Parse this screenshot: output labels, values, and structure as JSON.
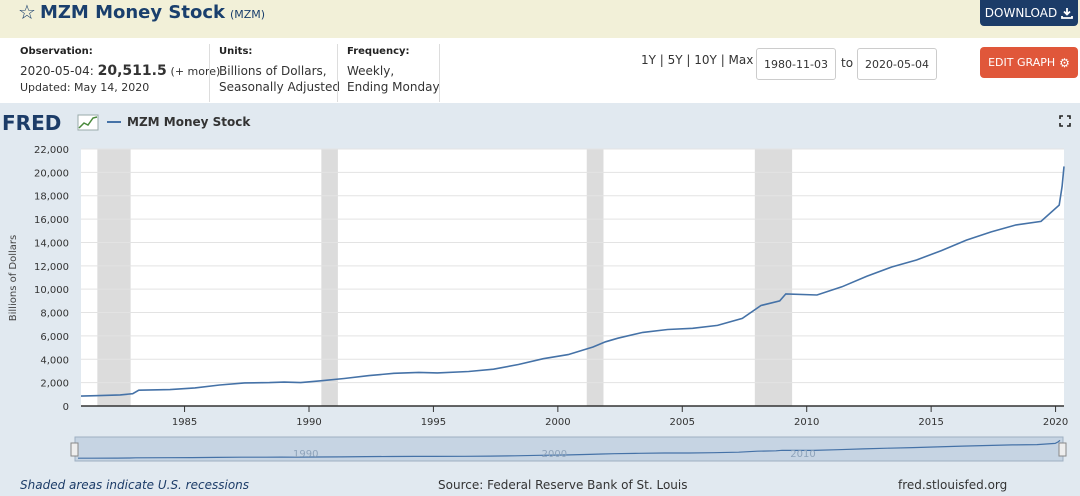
{
  "header": {
    "title": "MZM Money Stock",
    "series_code": "(MZM)",
    "download_label": "DOWNLOAD"
  },
  "observation": {
    "label": "Observation:",
    "date": "2020-05-04:",
    "value": "20,511.5",
    "more": "(+ more)",
    "updated": "Updated: May 14, 2020"
  },
  "units": {
    "label": "Units:",
    "line1": "Billions of Dollars,",
    "line2": "Seasonally Adjusted"
  },
  "frequency": {
    "label": "Frequency:",
    "line1": "Weekly,",
    "line2": "Ending Monday"
  },
  "range_buttons": "1Y | 5Y | 10Y | Max",
  "date_from": "1980-11-03",
  "date_to": "2020-05-04",
  "to_label": "to",
  "edit_label": "EDIT GRAPH",
  "colors": {
    "line": "#4572a7",
    "recession": "#dcdcdc",
    "brand": "#1c3c68",
    "edit": "#e0573a"
  },
  "chart_data": {
    "type": "line",
    "logo": "FRED",
    "legend": "MZM Money Stock",
    "ylabel": "Billions of Dollars",
    "ylim": [
      0,
      22000
    ],
    "yticks": [
      0,
      2000,
      4000,
      6000,
      8000,
      10000,
      12000,
      14000,
      16000,
      18000,
      20000,
      22000
    ],
    "ytick_labels": [
      "0",
      "2,000",
      "4,000",
      "6,000",
      "8,000",
      "10,000",
      "12,000",
      "14,000",
      "16,000",
      "18,000",
      "20,000",
      "22,000"
    ],
    "xlim": [
      "1980-11-03",
      "2020-05-04"
    ],
    "xticks": [
      1985,
      1990,
      1995,
      2000,
      2005,
      2010,
      2015,
      2020
    ],
    "recessions": [
      [
        "1981-07-01",
        "1982-11-01"
      ],
      [
        "1990-07-01",
        "1991-03-01"
      ],
      [
        "2001-03-01",
        "2001-11-01"
      ],
      [
        "2007-12-01",
        "2009-06-01"
      ]
    ],
    "series": [
      {
        "name": "MZM Money Stock",
        "x": [
          "1980-11-03",
          "1981-06-01",
          "1982-06-01",
          "1982-12-01",
          "1983-03-01",
          "1984-06-01",
          "1985-06-01",
          "1986-06-01",
          "1987-06-01",
          "1988-06-01",
          "1989-01-01",
          "1989-09-01",
          "1990-06-01",
          "1991-06-01",
          "1992-06-01",
          "1993-06-01",
          "1994-06-01",
          "1995-03-01",
          "1996-06-01",
          "1997-06-01",
          "1998-06-01",
          "1999-06-01",
          "2000-06-01",
          "2001-06-01",
          "2001-12-01",
          "2002-06-01",
          "2003-06-01",
          "2004-06-01",
          "2005-06-01",
          "2006-06-01",
          "2007-06-01",
          "2008-03-01",
          "2008-12-01",
          "2009-03-01",
          "2010-06-01",
          "2011-06-01",
          "2012-06-01",
          "2013-06-01",
          "2014-06-01",
          "2015-06-01",
          "2016-06-01",
          "2017-06-01",
          "2018-06-01",
          "2019-06-01",
          "2020-02-24",
          "2020-04-06",
          "2020-05-04"
        ],
        "values": [
          850,
          880,
          950,
          1050,
          1350,
          1400,
          1550,
          1800,
          1980,
          2000,
          2050,
          2000,
          2150,
          2350,
          2600,
          2800,
          2880,
          2830,
          2950,
          3150,
          3550,
          4050,
          4400,
          5050,
          5500,
          5800,
          6300,
          6550,
          6650,
          6900,
          7500,
          8600,
          9000,
          9600,
          9500,
          10200,
          11100,
          11900,
          12500,
          13300,
          14200,
          14900,
          15500,
          15800,
          17200,
          18800,
          20511.5
        ]
      }
    ],
    "notes": {
      "recessions": "Shaded areas indicate U.S. recessions",
      "source": "Source: Federal Reserve Bank of St. Louis",
      "site": "fred.stlouisfed.org"
    },
    "navigator_labels": [
      "1990",
      "2000",
      "2010"
    ]
  }
}
